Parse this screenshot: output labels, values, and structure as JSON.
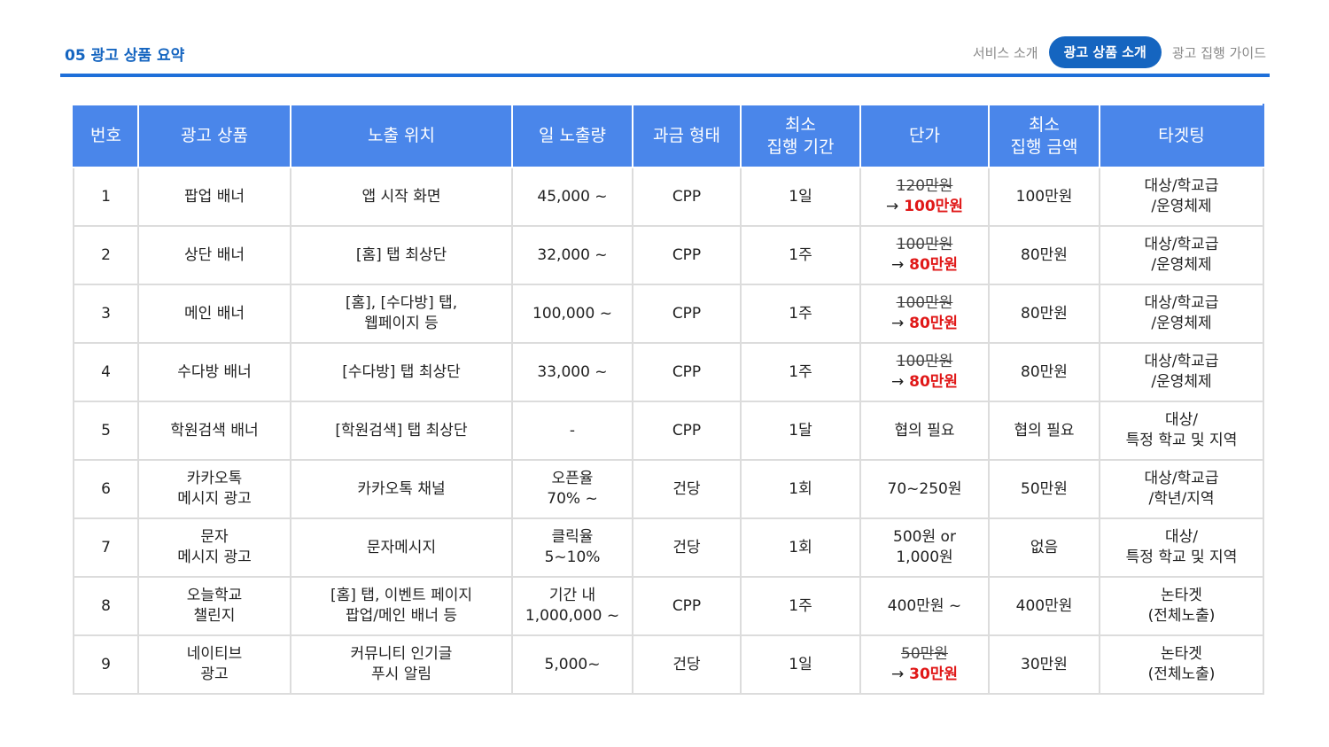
{
  "header": {
    "title": "05 광고 상품 요약",
    "tabs": [
      {
        "label": "서비스 소개",
        "active": false
      },
      {
        "label": "광고 상품 소개",
        "active": true
      },
      {
        "label": "광고 집행 가이드",
        "active": false
      }
    ]
  },
  "colors": {
    "accent": "#1565c0",
    "header_bg": "#4a86ea",
    "discount": "#e01818"
  },
  "table": {
    "columns": [
      "번호",
      "광고 상품",
      "노출 위치",
      "일 노출량",
      "과금 형태",
      "최소\n집행 기간",
      "단가",
      "최소\n집행 금액",
      "타겟팅"
    ],
    "rows": [
      {
        "no": "1",
        "product": "팝업 배너",
        "placement": "앱 시작 화면",
        "daily": "45,000 ~",
        "billing": "CPP",
        "min_period": "1일",
        "price_old": "120만원",
        "price_new": "100만원",
        "price": "",
        "min_amount": "100만원",
        "targeting": "대상/학교급\n/운영체제"
      },
      {
        "no": "2",
        "product": "상단 배너",
        "placement": "[홈] 탭 최상단",
        "daily": "32,000 ~",
        "billing": "CPP",
        "min_period": "1주",
        "price_old": "100만원",
        "price_new": "80만원",
        "price": "",
        "min_amount": "80만원",
        "targeting": "대상/학교급\n/운영체제"
      },
      {
        "no": "3",
        "product": "메인 배너",
        "placement": "[홈], [수다방] 탭,\n웹페이지 등",
        "daily": "100,000 ~",
        "billing": "CPP",
        "min_period": "1주",
        "price_old": "100만원",
        "price_new": "80만원",
        "price": "",
        "min_amount": "80만원",
        "targeting": "대상/학교급\n/운영체제"
      },
      {
        "no": "4",
        "product": "수다방 배너",
        "placement": "[수다방] 탭 최상단",
        "daily": "33,000 ~",
        "billing": "CPP",
        "min_period": "1주",
        "price_old": "100만원",
        "price_new": "80만원",
        "price": "",
        "min_amount": "80만원",
        "targeting": "대상/학교급\n/운영체제"
      },
      {
        "no": "5",
        "product": "학원검색 배너",
        "placement": "[학원검색] 탭 최상단",
        "daily": "-",
        "billing": "CPP",
        "min_period": "1달",
        "price_old": "",
        "price_new": "",
        "price": "협의 필요",
        "min_amount": "협의 필요",
        "targeting": "대상/\n특정 학교 및 지역"
      },
      {
        "no": "6",
        "product": "카카오톡\n메시지 광고",
        "placement": "카카오톡 채널",
        "daily": "오픈율\n70% ~",
        "billing": "건당",
        "min_period": "1회",
        "price_old": "",
        "price_new": "",
        "price": "70~250원",
        "min_amount": "50만원",
        "targeting": "대상/학교급\n/학년/지역"
      },
      {
        "no": "7",
        "product": "문자\n메시지 광고",
        "placement": "문자메시지",
        "daily": "클릭율\n5~10%",
        "billing": "건당",
        "min_period": "1회",
        "price_old": "",
        "price_new": "",
        "price": "500원 or\n1,000원",
        "min_amount": "없음",
        "targeting": "대상/\n특정 학교 및 지역"
      },
      {
        "no": "8",
        "product": "오늘학교\n챌린지",
        "placement": "[홈] 탭, 이벤트 페이지\n팝업/메인 배너 등",
        "daily": "기간 내\n1,000,000 ~",
        "billing": "CPP",
        "min_period": "1주",
        "price_old": "",
        "price_new": "",
        "price": "400만원 ~",
        "min_amount": "400만원",
        "targeting": "논타겟\n(전체노출)"
      },
      {
        "no": "9",
        "product": "네이티브\n광고",
        "placement": "커뮤니티 인기글\n푸시 알림",
        "daily": "5,000~",
        "billing": "건당",
        "min_period": "1일",
        "price_old": "50만원",
        "price_new": "30만원",
        "price": "",
        "min_amount": "30만원",
        "targeting": "논타겟\n(전체노출)"
      }
    ],
    "arrow": "→"
  }
}
